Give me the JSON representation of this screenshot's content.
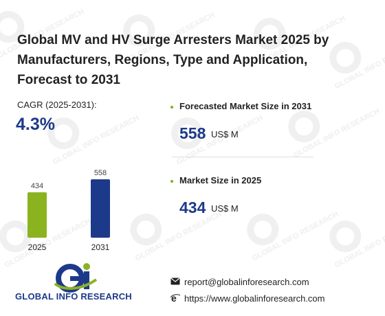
{
  "title": "Global MV and HV Surge Arresters Market 2025 by Manufacturers, Regions, Type and Application, Forecast to 2031",
  "cagr": {
    "label": "CAGR (2025-2031):",
    "value": "4.3%"
  },
  "forecast": {
    "label": "Forecasted Market Size in 2031",
    "value": "558",
    "unit": "US$ M"
  },
  "current": {
    "label": "Market Size in 2025",
    "value": "434",
    "unit": "US$ M"
  },
  "chart_data": {
    "type": "bar",
    "categories": [
      "2025",
      "2031"
    ],
    "values": [
      434,
      558
    ],
    "value_labels": [
      "434",
      "558"
    ],
    "colors": [
      "#8bb320",
      "#1d3a8a"
    ],
    "ylim": [
      0,
      558
    ],
    "title": "",
    "xlabel": "",
    "ylabel": ""
  },
  "logo": {
    "text": "GLOBAL INFO RESEARCH"
  },
  "watermark": {
    "text": "GLOBAL INFO RESEARCH"
  },
  "contact": {
    "email": "report@globalinforesearch.com",
    "website": "https://www.globalinforesearch.com"
  },
  "icons": {
    "email": "envelope-icon",
    "web": "globe-e-icon"
  },
  "colors": {
    "accent_navy": "#1d3a8a",
    "accent_green": "#8bb320"
  }
}
